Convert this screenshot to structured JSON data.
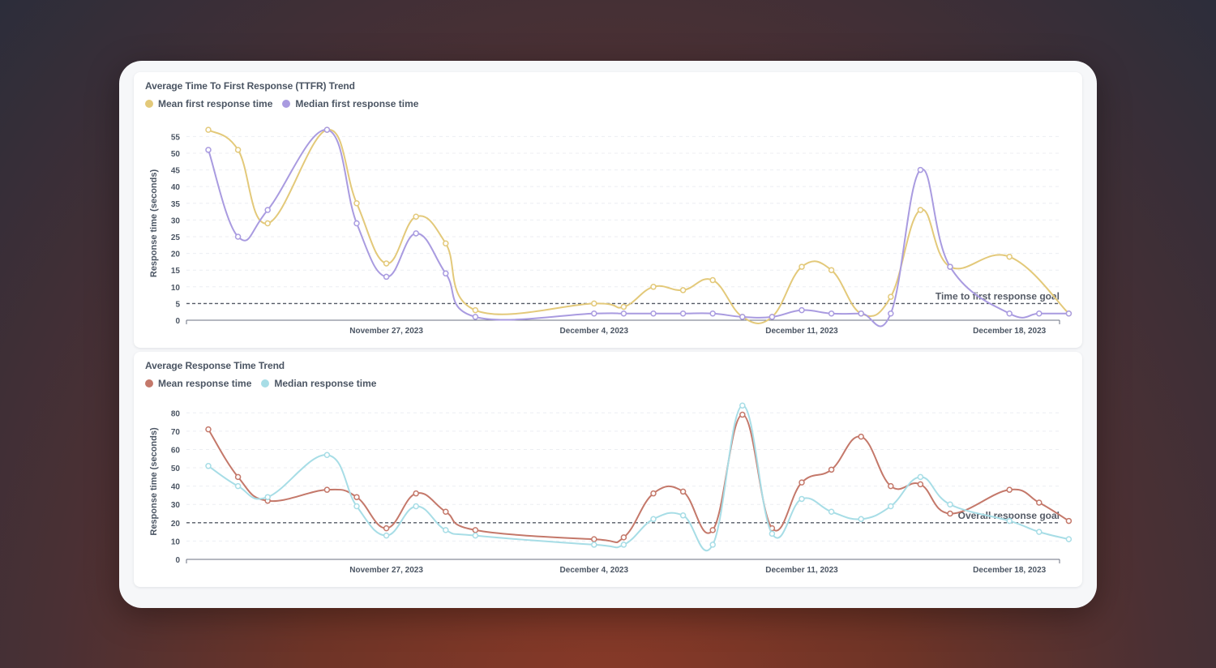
{
  "chart_data": [
    {
      "type": "line",
      "title": "Average Time To First Response (TTFR) Trend",
      "ylabel": "Response time (seconds)",
      "xlabel": "",
      "ylim": [
        0,
        58
      ],
      "yticks": [
        0,
        5,
        10,
        15,
        20,
        25,
        30,
        35,
        40,
        45,
        50,
        55
      ],
      "x_ticks": [
        {
          "day": 7,
          "label": "November 27, 2023"
        },
        {
          "day": 14,
          "label": "December 4, 2023"
        },
        {
          "day": 21,
          "label": "December 11, 2023"
        },
        {
          "day": 28,
          "label": "December 18, 2023"
        }
      ],
      "goal": {
        "value": 5,
        "label": "Time to first response goal"
      },
      "series": [
        {
          "name": "Mean first response time",
          "color": "#e3c97a",
          "points": [
            [
              1,
              57
            ],
            [
              2,
              51
            ],
            [
              3,
              29
            ],
            [
              5,
              57
            ],
            [
              6,
              35
            ],
            [
              7,
              17
            ],
            [
              8,
              31
            ],
            [
              9,
              23
            ],
            [
              10,
              3
            ],
            [
              14,
              5
            ],
            [
              15,
              4
            ],
            [
              16,
              10
            ],
            [
              17,
              9
            ],
            [
              18,
              12
            ],
            [
              19,
              1
            ],
            [
              20,
              1
            ],
            [
              21,
              16
            ],
            [
              22,
              15
            ],
            [
              23,
              2
            ],
            [
              24,
              7
            ],
            [
              25,
              33
            ],
            [
              26,
              16
            ],
            [
              28,
              19
            ],
            [
              30,
              2
            ]
          ]
        },
        {
          "name": "Median first response time",
          "color": "#a99be0",
          "points": [
            [
              1,
              51
            ],
            [
              2,
              25
            ],
            [
              3,
              33
            ],
            [
              5,
              57
            ],
            [
              6,
              29
            ],
            [
              7,
              13
            ],
            [
              8,
              26
            ],
            [
              9,
              14
            ],
            [
              10,
              1
            ],
            [
              14,
              2
            ],
            [
              15,
              2
            ],
            [
              16,
              2
            ],
            [
              17,
              2
            ],
            [
              18,
              2
            ],
            [
              19,
              1
            ],
            [
              20,
              1
            ],
            [
              21,
              3
            ],
            [
              22,
              2
            ],
            [
              23,
              2
            ],
            [
              24,
              2
            ],
            [
              25,
              45
            ],
            [
              26,
              16
            ],
            [
              28,
              2
            ],
            [
              29,
              2
            ],
            [
              30,
              2
            ]
          ]
        }
      ]
    },
    {
      "type": "line",
      "title": "Average Response Time Trend",
      "ylabel": "Response time (seconds)",
      "xlabel": "",
      "ylim": [
        0,
        85
      ],
      "yticks": [
        0,
        10,
        20,
        30,
        40,
        50,
        60,
        70,
        80
      ],
      "x_ticks": [
        {
          "day": 7,
          "label": "November 27, 2023"
        },
        {
          "day": 14,
          "label": "December 4, 2023"
        },
        {
          "day": 21,
          "label": "December 11, 2023"
        },
        {
          "day": 28,
          "label": "December 18, 2023"
        }
      ],
      "goal": {
        "value": 20,
        "label": "Overall response goal"
      },
      "series": [
        {
          "name": "Mean response time",
          "color": "#c4786a",
          "points": [
            [
              1,
              71
            ],
            [
              2,
              45
            ],
            [
              3,
              32
            ],
            [
              5,
              38
            ],
            [
              6,
              34
            ],
            [
              7,
              17
            ],
            [
              8,
              36
            ],
            [
              9,
              26
            ],
            [
              10,
              16
            ],
            [
              14,
              11
            ],
            [
              15,
              12
            ],
            [
              16,
              36
            ],
            [
              17,
              37
            ],
            [
              18,
              16
            ],
            [
              19,
              79
            ],
            [
              20,
              17
            ],
            [
              21,
              42
            ],
            [
              22,
              49
            ],
            [
              23,
              67
            ],
            [
              24,
              40
            ],
            [
              25,
              41
            ],
            [
              26,
              25
            ],
            [
              28,
              38
            ],
            [
              29,
              31
            ],
            [
              30,
              21
            ]
          ]
        },
        {
          "name": "Median response time",
          "color": "#a7dde6",
          "points": [
            [
              1,
              51
            ],
            [
              2,
              40
            ],
            [
              3,
              34
            ],
            [
              5,
              57
            ],
            [
              6,
              29
            ],
            [
              7,
              13
            ],
            [
              8,
              29
            ],
            [
              9,
              16
            ],
            [
              10,
              13
            ],
            [
              14,
              8
            ],
            [
              15,
              8
            ],
            [
              16,
              22
            ],
            [
              17,
              24
            ],
            [
              18,
              8
            ],
            [
              19,
              84
            ],
            [
              20,
              14
            ],
            [
              21,
              33
            ],
            [
              22,
              26
            ],
            [
              23,
              22
            ],
            [
              24,
              29
            ],
            [
              25,
              45
            ],
            [
              26,
              30
            ],
            [
              28,
              21
            ],
            [
              29,
              15
            ],
            [
              30,
              11
            ]
          ]
        }
      ]
    }
  ]
}
